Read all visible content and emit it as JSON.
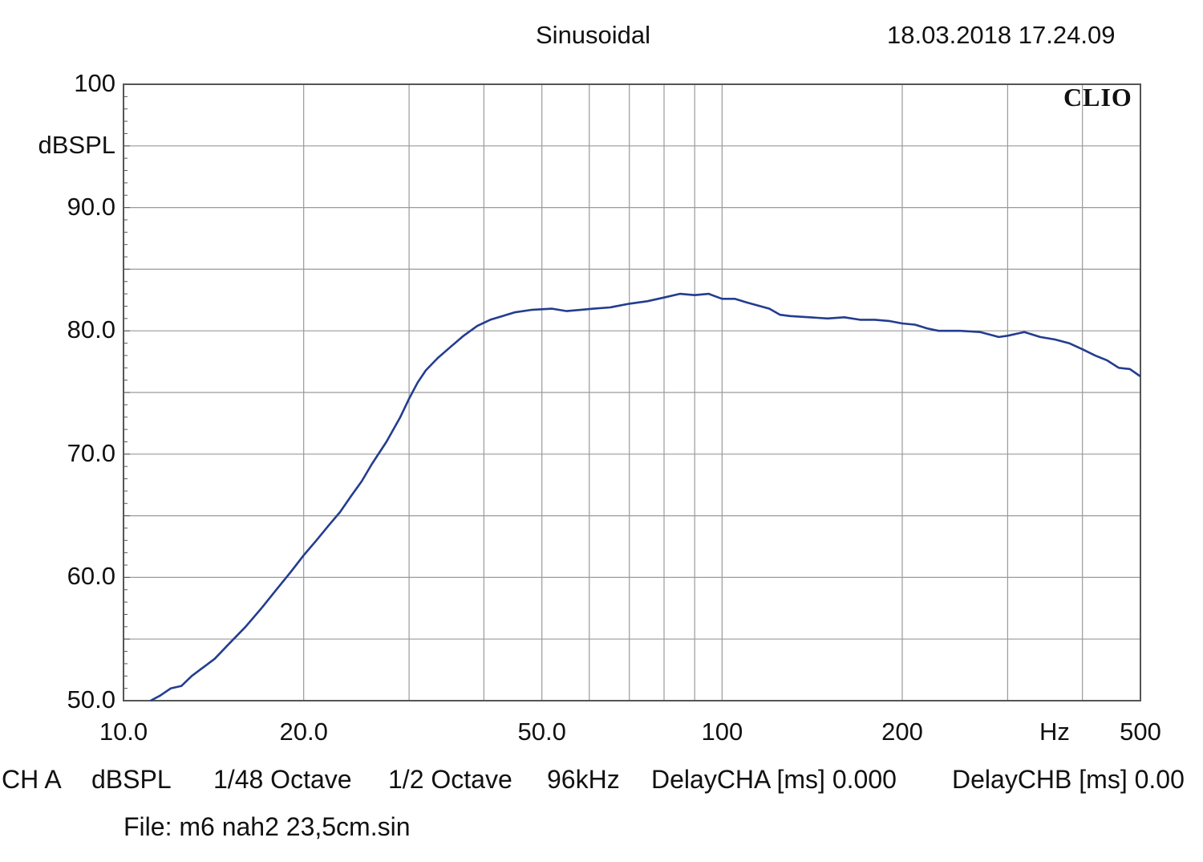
{
  "header": {
    "title": "Sinusoidal",
    "datetime": "18.03.2018 17.24.09",
    "brand": "CLIO"
  },
  "footer": {
    "channel": "CH A",
    "unit": "dBSPL",
    "smoothing": "1/48 Octave",
    "resolution": "1/2 Octave",
    "sample_rate": "96kHz",
    "delay_cha": "DelayCHA [ms] 0.000",
    "delay_chb": "DelayCHB [ms] 0.00",
    "file": "File: m6 nah2 23,5cm.sin"
  },
  "colors": {
    "trace": "#233d8f",
    "grid": "#9a9a9a",
    "frame": "#555555"
  },
  "chart_data": {
    "type": "line",
    "xscale": "log",
    "xlim": [
      10,
      500
    ],
    "ylim": [
      50,
      100
    ],
    "ylabel": "dBSPL",
    "xlabel": "Hz",
    "grid": true,
    "y_tick_labels": [
      {
        "value": 100,
        "label": "100"
      },
      {
        "value": 90,
        "label": "90.0"
      },
      {
        "value": 80,
        "label": "80.0"
      },
      {
        "value": 70,
        "label": "70.0"
      },
      {
        "value": 60,
        "label": "60.0"
      },
      {
        "value": 50,
        "label": "50.0"
      }
    ],
    "x_tick_labels": [
      {
        "value": 10,
        "label": "10.0"
      },
      {
        "value": 20,
        "label": "20.0"
      },
      {
        "value": 50,
        "label": "50.0"
      },
      {
        "value": 100,
        "label": "100"
      },
      {
        "value": 200,
        "label": "200"
      },
      {
        "value": 500,
        "label": "500"
      }
    ],
    "x_gridlines": [
      20,
      30,
      40,
      50,
      60,
      70,
      80,
      90,
      100,
      200,
      300,
      400
    ],
    "y_gridlines": [
      55,
      60,
      65,
      70,
      75,
      80,
      85,
      90,
      95
    ],
    "series": [
      {
        "x": [
          11.1,
          11.5,
          12.0,
          12.5,
          13.0,
          13.5,
          14.2,
          15.0,
          16.0,
          17.0,
          18.0,
          19.0,
          20.0,
          21.0,
          22.0,
          23.0,
          24.0,
          25.0,
          26.0,
          27.5,
          29.0,
          30.0,
          31.0,
          32.0,
          33.5,
          35.0,
          37.0,
          39.0,
          41.0,
          43.0,
          45.0,
          48.0,
          52.0,
          55.0,
          58.0,
          61.0,
          65.0,
          70.0,
          75.0,
          80.0,
          85.0,
          90.0,
          95.0,
          100.0,
          105.0,
          110.0,
          120.0,
          125.0,
          130.0,
          140.0,
          150.0,
          160.0,
          170.0,
          180.0,
          190.0,
          200.0,
          210.0,
          220.0,
          230.0,
          250.0,
          270.0,
          290.0,
          300.0,
          320.0,
          340.0,
          360.0,
          380.0,
          400.0,
          420.0,
          440.0,
          460.0,
          480.0,
          500.0
        ],
        "y": [
          50.0,
          50.4,
          51.0,
          51.2,
          52.0,
          52.6,
          53.4,
          54.6,
          56.0,
          57.5,
          59.0,
          60.4,
          61.8,
          63.0,
          64.2,
          65.3,
          66.6,
          67.8,
          69.2,
          71.0,
          73.0,
          74.5,
          75.8,
          76.8,
          77.8,
          78.6,
          79.6,
          80.4,
          80.9,
          81.2,
          81.5,
          81.7,
          81.8,
          81.6,
          81.7,
          81.8,
          81.9,
          82.2,
          82.4,
          82.7,
          83.0,
          82.9,
          83.0,
          82.6,
          82.6,
          82.3,
          81.8,
          81.3,
          81.2,
          81.1,
          81.0,
          81.1,
          80.9,
          80.9,
          80.8,
          80.6,
          80.5,
          80.2,
          80.0,
          80.0,
          79.9,
          79.5,
          79.6,
          79.9,
          79.5,
          79.3,
          79.0,
          78.5,
          78.0,
          77.6,
          77.0,
          76.9,
          76.3
        ]
      }
    ]
  }
}
